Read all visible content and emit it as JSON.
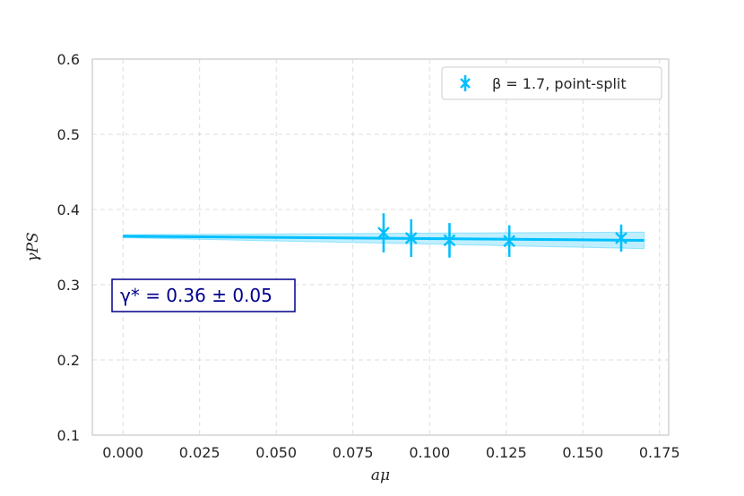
{
  "chart_data": {
    "type": "scatter",
    "xlabel": "aμ",
    "ylabel": "γPS",
    "xlim": [
      -0.01,
      0.178
    ],
    "ylim": [
      0.1,
      0.6
    ],
    "xticks": [
      0.0,
      0.025,
      0.05,
      0.075,
      0.1,
      0.125,
      0.15,
      0.175
    ],
    "xtick_labels": [
      "0.000",
      "0.025",
      "0.050",
      "0.075",
      "0.100",
      "0.125",
      "0.150",
      "0.175"
    ],
    "yticks": [
      0.1,
      0.2,
      0.3,
      0.4,
      0.5,
      0.6
    ],
    "ytick_labels": [
      "0.1",
      "0.2",
      "0.3",
      "0.4",
      "0.5",
      "0.6"
    ],
    "grid": true,
    "legend_position": "top-right",
    "series": [
      {
        "name": "β = 1.7, point-split",
        "color": "#00bfff",
        "marker": "x-with-errorbar",
        "x": [
          0.085,
          0.094,
          0.1065,
          0.126,
          0.1625
        ],
        "y": [
          0.369,
          0.362,
          0.359,
          0.358,
          0.362
        ],
        "yerr": [
          0.026,
          0.025,
          0.023,
          0.021,
          0.018
        ]
      }
    ],
    "fit": {
      "color": "#00bfff",
      "x": [
        0.0,
        0.17
      ],
      "y": [
        0.3645,
        0.359
      ],
      "band_lower": [
        0.3625,
        0.348
      ],
      "band_upper": [
        0.3665,
        0.37
      ]
    },
    "annotation": {
      "text": "γ* = 0.36 ± 0.05",
      "border_color": "#00008b"
    }
  }
}
